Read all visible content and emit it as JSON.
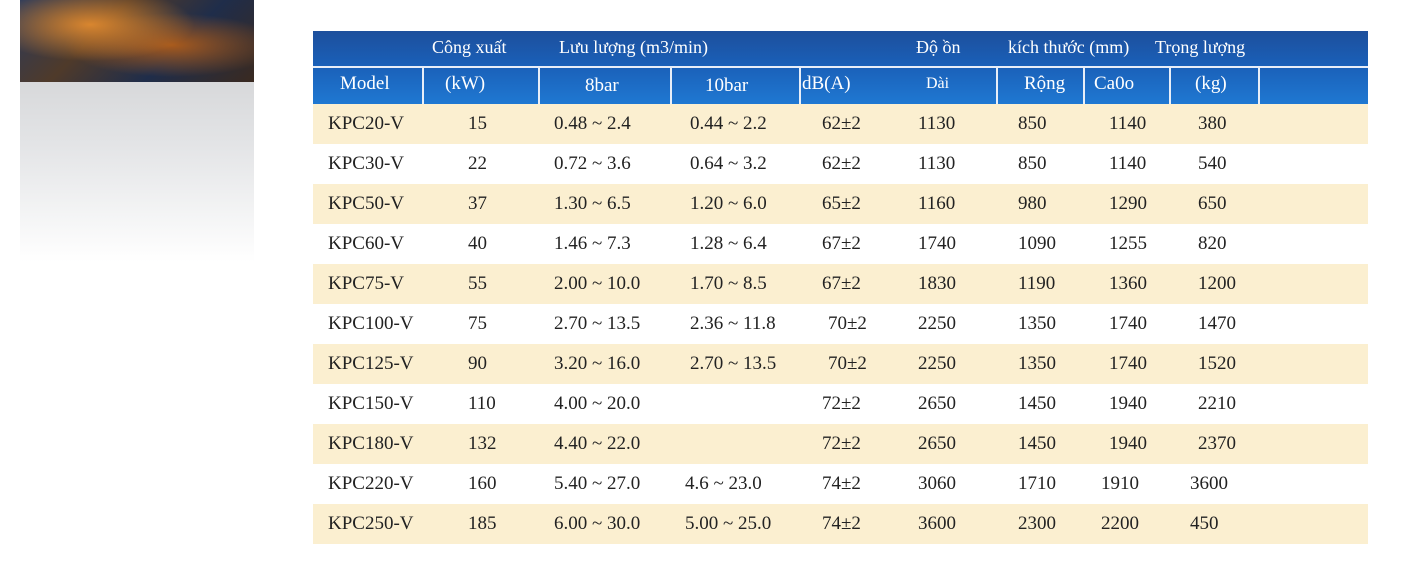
{
  "table": {
    "header_row1": {
      "power": "Công xuất",
      "flow": "Lưu lượng  (m3/min)",
      "noise": "Độ ồn",
      "dimensions": "kích thước (mm)",
      "weight": "Trọng lượng"
    },
    "header_row2": {
      "model": "Model",
      "power_unit": "(kW)",
      "flow_8bar": "8bar",
      "flow_10bar": "10bar",
      "noise_unit": "dB(A)",
      "length": "Dài",
      "width": "Rộng",
      "height": "Ca0o",
      "weight_unit": "(kg)"
    },
    "rows": [
      {
        "model": "KPC20-V",
        "kw": "15",
        "f8": "0.48 ~ 2.4",
        "f10": "0.44 ~ 2.2",
        "db": "62±2",
        "l": "1130",
        "w": "850",
        "h": "1140",
        "kg": "380"
      },
      {
        "model": "KPC30-V",
        "kw": "22",
        "f8": "0.72 ~ 3.6",
        "f10": "0.64 ~ 3.2",
        "db": "62±2",
        "l": "1130",
        "w": "850",
        "h": "1140",
        "kg": "540"
      },
      {
        "model": "KPC50-V",
        "kw": "37",
        "f8": "1.30 ~ 6.5",
        "f10": "1.20 ~ 6.0",
        "db": "65±2",
        "l": "1160",
        "w": "980",
        "h": "1290",
        "kg": "650"
      },
      {
        "model": "KPC60-V",
        "kw": "40",
        "f8": "1.46 ~ 7.3",
        "f10": "1.28 ~ 6.4",
        "db": "67±2",
        "l": "1740",
        "w": "1090",
        "h": "1255",
        "kg": "820"
      },
      {
        "model": "KPC75-V",
        "kw": "55",
        "f8": "2.00 ~ 10.0",
        "f10": "1.70 ~  8.5",
        "db": "67±2",
        "l": "1830",
        "w": "1190",
        "h": "1360",
        "kg": "1200"
      },
      {
        "model": "KPC100-V",
        "kw": "75",
        "f8": "2.70 ~ 13.5",
        "f10": "2.36 ~ 11.8",
        "db": "70±2",
        "l": "2250",
        "w": "1350",
        "h": "1740",
        "kg": "1470"
      },
      {
        "model": "KPC125-V",
        "kw": "90",
        "f8": "3.20 ~ 16.0",
        "f10": "2.70 ~ 13.5",
        "db": "70±2",
        "l": "2250",
        "w": "1350",
        "h": "1740",
        "kg": "1520"
      },
      {
        "model": "KPC150-V",
        "kw": "110",
        "f8": "4.00 ~ 20.0",
        "f10": "",
        "db": "72±2",
        "l": "2650",
        "w": "1450",
        "h": "1940",
        "kg": "2210"
      },
      {
        "model": "KPC180-V",
        "kw": "132",
        "f8": "4.40 ~ 22.0",
        "f10": "",
        "db": "72±2",
        "l": "2650",
        "w": "1450",
        "h": "1940",
        "kg": "2370"
      },
      {
        "model": "KPC220-V",
        "kw": "160",
        "f8": "5.40 ~ 27.0",
        "f10": "4.6 ~  23.0",
        "db": "74±2",
        "l": "3060",
        "w": "1710",
        "h": "1910",
        "kg": "3600"
      },
      {
        "model": "KPC250-V",
        "kw": "185",
        "f8": "6.00 ~ 30.0",
        "f10": "5.00 ~  25.0",
        "db": "74±2",
        "l": "3600",
        "w": "2300",
        "h": "2200",
        "kg": "450"
      }
    ]
  }
}
